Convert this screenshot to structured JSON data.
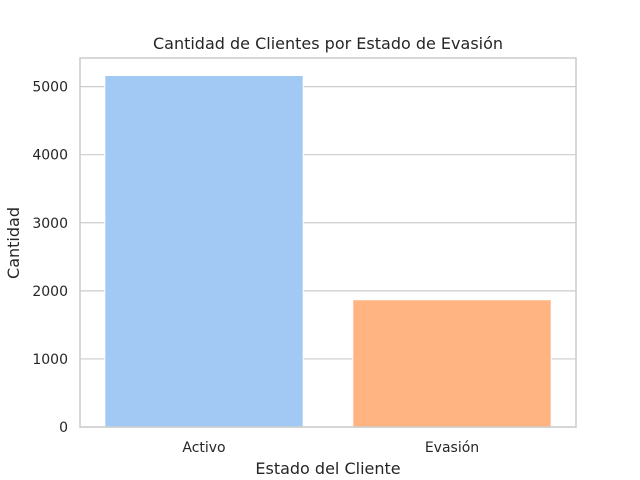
{
  "chart_data": {
    "type": "bar",
    "title": "Cantidad de Clientes por Estado de Evasión",
    "xlabel": "Estado del Cliente",
    "ylabel": "Cantidad",
    "categories": [
      "Activo",
      "Evasión"
    ],
    "values": [
      5163,
      1869
    ],
    "colors": [
      "#a1c9f4",
      "#ffb482"
    ],
    "ylim": [
      0,
      5420
    ],
    "yticks": [
      0,
      1000,
      2000,
      3000,
      4000,
      5000
    ],
    "grid": true,
    "legend": "none"
  }
}
